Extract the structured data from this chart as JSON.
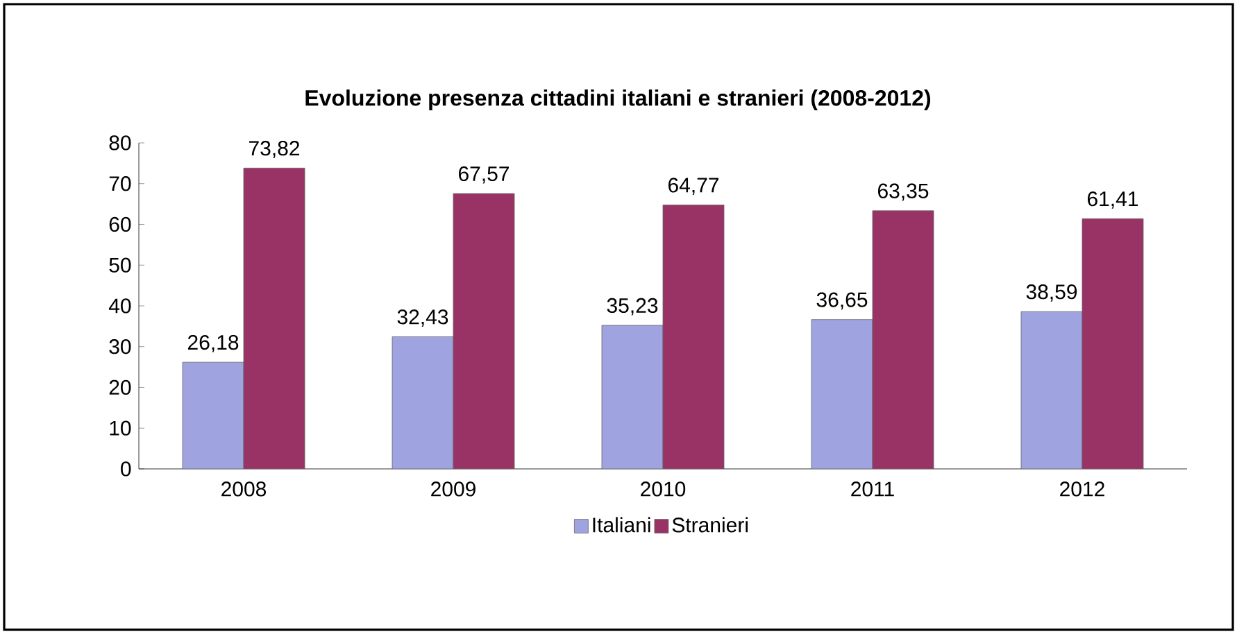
{
  "chart_data": {
    "type": "bar",
    "title": "Evoluzione presenza cittadini italiani e stranieri (2008-2012)",
    "categories": [
      "2008",
      "2009",
      "2010",
      "2011",
      "2012"
    ],
    "series": [
      {
        "name": "Italiani",
        "color": "#9fa3df",
        "values": [
          26.18,
          32.43,
          35.23,
          36.65,
          38.59
        ],
        "value_labels": [
          "26,18",
          "32,43",
          "35,23",
          "36,65",
          "38,59"
        ]
      },
      {
        "name": "Stranieri",
        "color": "#993366",
        "values": [
          73.82,
          67.57,
          64.77,
          63.35,
          61.41
        ],
        "value_labels": [
          "73,82",
          "67,57",
          "64,77",
          "63,35",
          "61,41"
        ]
      }
    ],
    "ylim": [
      0,
      80
    ],
    "yticks": [
      0,
      10,
      20,
      30,
      40,
      50,
      60,
      70,
      80
    ],
    "legend": "bottom",
    "grid": false
  }
}
